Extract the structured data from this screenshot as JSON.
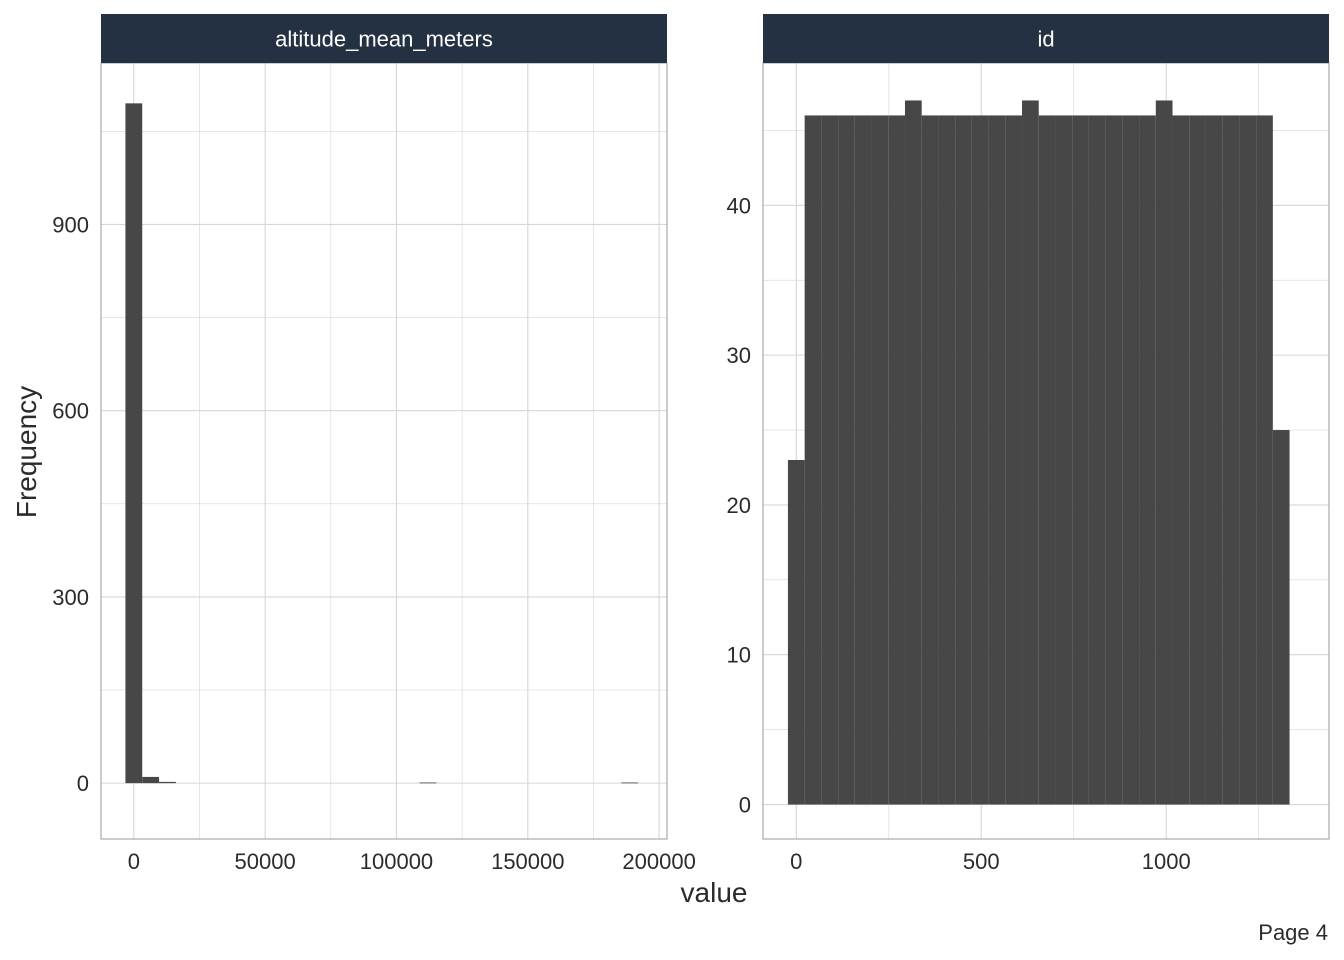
{
  "page_label": "Page 4",
  "colors": {
    "bar": "#474747",
    "strip": "#233142",
    "grid": "#d6d6d6",
    "border": "#9a9a9a",
    "text": "#2b2b2b"
  },
  "chart_data": {
    "type": "bar",
    "xlabel": "value",
    "ylabel": "Frequency",
    "grid": true,
    "facets": [
      {
        "name": "altitude_mean_meters",
        "xlim": [
          -12500,
          203000
        ],
        "ylim": [
          -90,
          1160
        ],
        "x_ticks": [
          0,
          50000,
          100000,
          150000,
          200000
        ],
        "y_ticks": [
          0,
          300,
          600,
          900
        ],
        "bins": [
          {
            "x0": -3200,
            "x1": 3200,
            "count": 1095
          },
          {
            "x0": 3200,
            "x1": 9600,
            "count": 10
          },
          {
            "x0": 9600,
            "x1": 16000,
            "count": 2
          },
          {
            "x0": 108800,
            "x1": 115200,
            "count": 1
          },
          {
            "x0": 185600,
            "x1": 192000,
            "count": 1
          }
        ]
      },
      {
        "name": "id",
        "xlim": [
          -90,
          1440
        ],
        "ylim": [
          -2.3,
          49.5
        ],
        "x_ticks": [
          0,
          500,
          1000
        ],
        "y_ticks": [
          0,
          10,
          20,
          30,
          40
        ],
        "bins": [
          {
            "x0": -22.6,
            "x1": 22.6,
            "count": 23
          },
          {
            "x0": 22.6,
            "x1": 67.8,
            "count": 46
          },
          {
            "x0": 67.8,
            "x1": 113,
            "count": 46
          },
          {
            "x0": 113,
            "x1": 158.2,
            "count": 46
          },
          {
            "x0": 158.2,
            "x1": 203.4,
            "count": 46
          },
          {
            "x0": 203.4,
            "x1": 248.6,
            "count": 46
          },
          {
            "x0": 248.6,
            "x1": 293.8,
            "count": 46
          },
          {
            "x0": 293.8,
            "x1": 339,
            "count": 47
          },
          {
            "x0": 339,
            "x1": 384.2,
            "count": 46
          },
          {
            "x0": 384.2,
            "x1": 429.4,
            "count": 46
          },
          {
            "x0": 429.4,
            "x1": 474.6,
            "count": 46
          },
          {
            "x0": 474.6,
            "x1": 519.8,
            "count": 46
          },
          {
            "x0": 519.8,
            "x1": 565,
            "count": 46
          },
          {
            "x0": 565,
            "x1": 610.2,
            "count": 46
          },
          {
            "x0": 610.2,
            "x1": 655.4,
            "count": 47
          },
          {
            "x0": 655.4,
            "x1": 700.6,
            "count": 46
          },
          {
            "x0": 700.6,
            "x1": 745.8,
            "count": 46
          },
          {
            "x0": 745.8,
            "x1": 791,
            "count": 46
          },
          {
            "x0": 791,
            "x1": 836.2,
            "count": 46
          },
          {
            "x0": 836.2,
            "x1": 881.4,
            "count": 46
          },
          {
            "x0": 881.4,
            "x1": 926.6,
            "count": 46
          },
          {
            "x0": 926.6,
            "x1": 971.8,
            "count": 46
          },
          {
            "x0": 971.8,
            "x1": 1017,
            "count": 47
          },
          {
            "x0": 1017,
            "x1": 1062.2,
            "count": 46
          },
          {
            "x0": 1062.2,
            "x1": 1107.4,
            "count": 46
          },
          {
            "x0": 1107.4,
            "x1": 1152.6,
            "count": 46
          },
          {
            "x0": 1152.6,
            "x1": 1197.8,
            "count": 46
          },
          {
            "x0": 1197.8,
            "x1": 1243,
            "count": 46
          },
          {
            "x0": 1243,
            "x1": 1288.2,
            "count": 46
          },
          {
            "x0": 1288.2,
            "x1": 1333.4,
            "count": 25
          }
        ]
      }
    ]
  }
}
